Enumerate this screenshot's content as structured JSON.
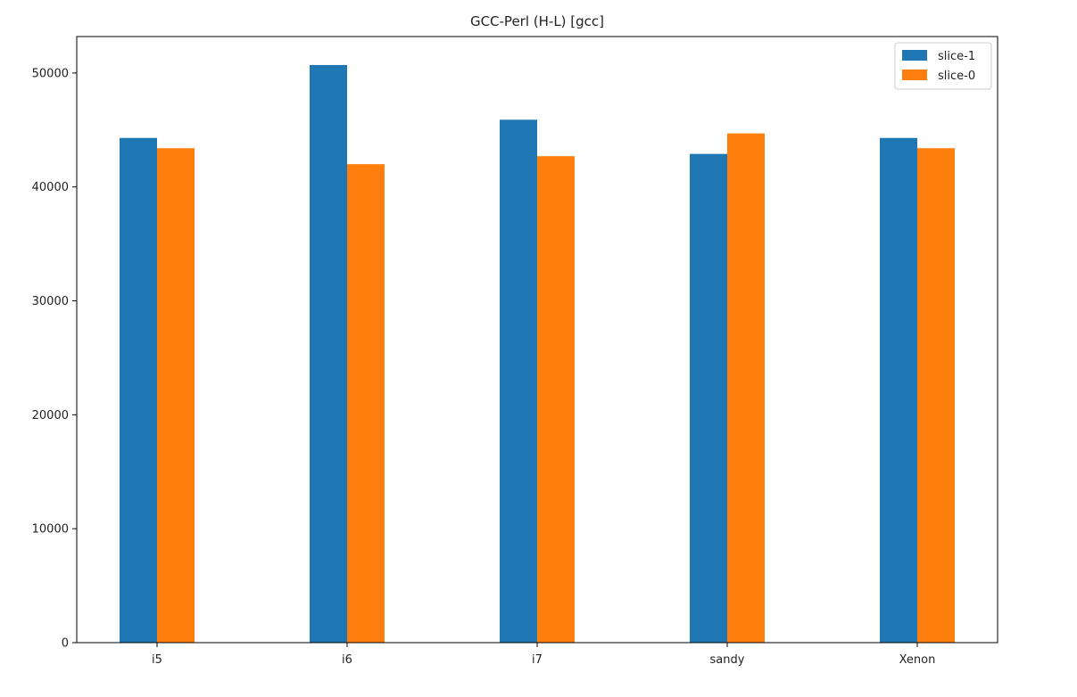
{
  "chart_data": {
    "type": "bar",
    "title": "GCC-Perl (H-L) [gcc]",
    "xlabel": "",
    "ylabel": "",
    "categories": [
      "i5",
      "i6",
      "i7",
      "sandy",
      "Xenon"
    ],
    "series": [
      {
        "name": "slice-1",
        "color": "#1f77b4",
        "values": [
          44300,
          50700,
          45900,
          42900,
          44300
        ]
      },
      {
        "name": "slice-0",
        "color": "#ff7f0e",
        "values": [
          43400,
          42000,
          42700,
          44700,
          43400
        ]
      }
    ],
    "ylim": [
      0,
      53200
    ],
    "yticks": [
      0,
      10000,
      20000,
      30000,
      40000,
      50000
    ],
    "ytick_labels": [
      "0",
      "10000",
      "20000",
      "30000",
      "40000",
      "50000"
    ],
    "grid": false,
    "legend_position": "top-right"
  }
}
